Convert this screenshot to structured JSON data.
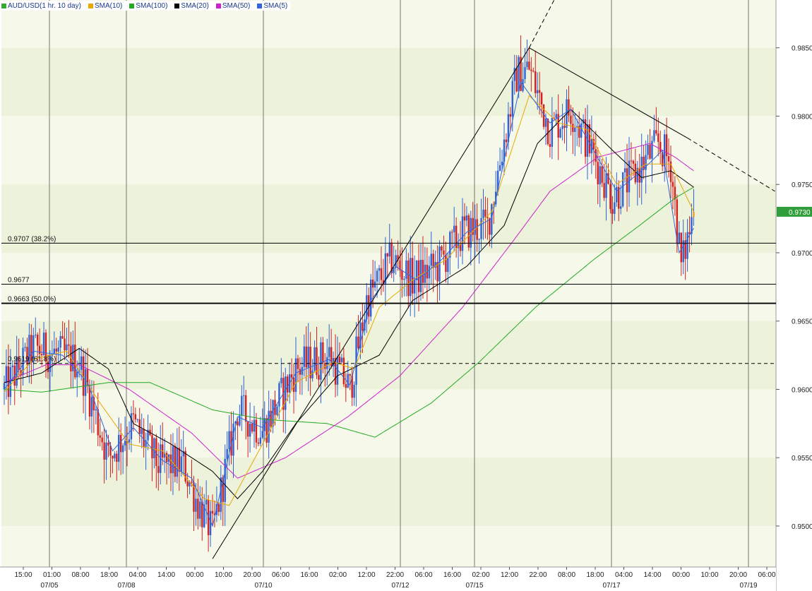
{
  "window": {
    "legend": [
      {
        "label": "AUD/USD(1 hr.  10 day)",
        "color": "#33aa33"
      },
      {
        "label": "SMA(10)",
        "color": "#e8a800"
      },
      {
        "label": "SMA(100)",
        "color": "#22aa22"
      },
      {
        "label": "SMA(20)",
        "color": "#000000"
      },
      {
        "label": "SMA(50)",
        "color": "#cc22cc"
      },
      {
        "label": "SMA(5)",
        "color": "#3366dd"
      }
    ],
    "last_price": "0.9730"
  },
  "chart_data": {
    "type": "candlestick",
    "symbol": "AUD/USD",
    "timeframe": "1 hr.  10 day",
    "ylim": [
      0.947,
      0.9885
    ],
    "y_ticks": [
      "0.9500",
      "0.9550",
      "0.9600",
      "0.9650",
      "0.9700",
      "0.9750",
      "0.9800",
      "0.9850"
    ],
    "x_ticks": [
      "15:00",
      "01:00",
      "08:00",
      "18:00",
      "04:00",
      "14:00",
      "00:00",
      "10:00",
      "20:00",
      "06:00",
      "16:00",
      "02:00",
      "12:00",
      "22:00",
      "06:00",
      "16:00",
      "02:00",
      "12:00",
      "22:00",
      "08:00",
      "18:00",
      "04:00",
      "14:00",
      "00:00",
      "10:00",
      "20:00",
      "06:00"
    ],
    "date_labels": [
      "07/05",
      "07/08",
      "07/10",
      "07/12",
      "07/15",
      "07/17",
      "07/19"
    ],
    "price_path_keypoints": [
      {
        "t": 0,
        "p": 0.96
      },
      {
        "t": 14,
        "p": 0.963
      },
      {
        "t": 28,
        "p": 0.9625
      },
      {
        "t": 36,
        "p": 0.962
      },
      {
        "t": 50,
        "p": 0.955
      },
      {
        "t": 62,
        "p": 0.9575
      },
      {
        "t": 74,
        "p": 0.9545
      },
      {
        "t": 86,
        "p": 0.9545
      },
      {
        "t": 92,
        "p": 0.952
      },
      {
        "t": 100,
        "p": 0.9495
      },
      {
        "t": 112,
        "p": 0.9585
      },
      {
        "t": 124,
        "p": 0.957
      },
      {
        "t": 140,
        "p": 0.9615
      },
      {
        "t": 156,
        "p": 0.9625
      },
      {
        "t": 166,
        "p": 0.96
      },
      {
        "t": 174,
        "p": 0.9665
      },
      {
        "t": 186,
        "p": 0.9695
      },
      {
        "t": 196,
        "p": 0.968
      },
      {
        "t": 208,
        "p": 0.969
      },
      {
        "t": 220,
        "p": 0.9715
      },
      {
        "t": 232,
        "p": 0.972
      },
      {
        "t": 246,
        "p": 0.983
      },
      {
        "t": 252,
        "p": 0.9835
      },
      {
        "t": 262,
        "p": 0.979
      },
      {
        "t": 272,
        "p": 0.9805
      },
      {
        "t": 282,
        "p": 0.9775
      },
      {
        "t": 292,
        "p": 0.974
      },
      {
        "t": 304,
        "p": 0.976
      },
      {
        "t": 314,
        "p": 0.978
      },
      {
        "t": 320,
        "p": 0.9765
      },
      {
        "t": 325,
        "p": 0.969
      },
      {
        "t": 331,
        "p": 0.973
      }
    ],
    "sma_keypoints": {
      "SMA(100)": [
        {
          "t": 0,
          "p": 0.96
        },
        {
          "t": 18,
          "p": 0.9598
        },
        {
          "t": 50,
          "p": 0.9605
        },
        {
          "t": 70,
          "p": 0.9605
        },
        {
          "t": 100,
          "p": 0.9585
        },
        {
          "t": 125,
          "p": 0.9578
        },
        {
          "t": 155,
          "p": 0.9575
        },
        {
          "t": 178,
          "p": 0.9565
        },
        {
          "t": 205,
          "p": 0.959
        },
        {
          "t": 228,
          "p": 0.962
        },
        {
          "t": 255,
          "p": 0.966
        },
        {
          "t": 283,
          "p": 0.9695
        },
        {
          "t": 305,
          "p": 0.972
        },
        {
          "t": 322,
          "p": 0.974
        },
        {
          "t": 331,
          "p": 0.9748
        }
      ],
      "SMA(50)": [
        {
          "t": 0,
          "p": 0.9605
        },
        {
          "t": 20,
          "p": 0.9618
        },
        {
          "t": 36,
          "p": 0.9618
        },
        {
          "t": 60,
          "p": 0.96
        },
        {
          "t": 90,
          "p": 0.9568
        },
        {
          "t": 112,
          "p": 0.9535
        },
        {
          "t": 135,
          "p": 0.955
        },
        {
          "t": 165,
          "p": 0.958
        },
        {
          "t": 190,
          "p": 0.961
        },
        {
          "t": 220,
          "p": 0.966
        },
        {
          "t": 245,
          "p": 0.971
        },
        {
          "t": 262,
          "p": 0.9745
        },
        {
          "t": 285,
          "p": 0.977
        },
        {
          "t": 310,
          "p": 0.978
        },
        {
          "t": 322,
          "p": 0.977
        },
        {
          "t": 331,
          "p": 0.976
        }
      ],
      "SMA(20)": [
        {
          "t": 0,
          "p": 0.9605
        },
        {
          "t": 18,
          "p": 0.9612
        },
        {
          "t": 36,
          "p": 0.963
        },
        {
          "t": 50,
          "p": 0.9615
        },
        {
          "t": 62,
          "p": 0.9575
        },
        {
          "t": 80,
          "p": 0.956
        },
        {
          "t": 100,
          "p": 0.954
        },
        {
          "t": 112,
          "p": 0.952
        },
        {
          "t": 124,
          "p": 0.954
        },
        {
          "t": 140,
          "p": 0.9575
        },
        {
          "t": 160,
          "p": 0.961
        },
        {
          "t": 180,
          "p": 0.9625
        },
        {
          "t": 196,
          "p": 0.9665
        },
        {
          "t": 222,
          "p": 0.969
        },
        {
          "t": 240,
          "p": 0.972
        },
        {
          "t": 256,
          "p": 0.978
        },
        {
          "t": 272,
          "p": 0.9805
        },
        {
          "t": 292,
          "p": 0.9775
        },
        {
          "t": 306,
          "p": 0.9755
        },
        {
          "t": 320,
          "p": 0.976
        },
        {
          "t": 331,
          "p": 0.9748
        }
      ],
      "SMA(10)": [
        {
          "t": 0,
          "p": 0.9598
        },
        {
          "t": 14,
          "p": 0.9622
        },
        {
          "t": 30,
          "p": 0.9628
        },
        {
          "t": 46,
          "p": 0.959
        },
        {
          "t": 60,
          "p": 0.956
        },
        {
          "t": 76,
          "p": 0.9555
        },
        {
          "t": 96,
          "p": 0.952
        },
        {
          "t": 108,
          "p": 0.9515
        },
        {
          "t": 124,
          "p": 0.956
        },
        {
          "t": 140,
          "p": 0.9605
        },
        {
          "t": 158,
          "p": 0.962
        },
        {
          "t": 168,
          "p": 0.9615
        },
        {
          "t": 180,
          "p": 0.966
        },
        {
          "t": 196,
          "p": 0.968
        },
        {
          "t": 212,
          "p": 0.9695
        },
        {
          "t": 234,
          "p": 0.973
        },
        {
          "t": 252,
          "p": 0.9815
        },
        {
          "t": 266,
          "p": 0.9795
        },
        {
          "t": 280,
          "p": 0.979
        },
        {
          "t": 294,
          "p": 0.975
        },
        {
          "t": 308,
          "p": 0.9765
        },
        {
          "t": 320,
          "p": 0.9765
        },
        {
          "t": 331,
          "p": 0.973
        }
      ],
      "SMA(5)": [
        {
          "t": 0,
          "p": 0.96
        },
        {
          "t": 14,
          "p": 0.9628
        },
        {
          "t": 28,
          "p": 0.9625
        },
        {
          "t": 40,
          "p": 0.9605
        },
        {
          "t": 52,
          "p": 0.9555
        },
        {
          "t": 62,
          "p": 0.9572
        },
        {
          "t": 76,
          "p": 0.9548
        },
        {
          "t": 90,
          "p": 0.9535
        },
        {
          "t": 100,
          "p": 0.95
        },
        {
          "t": 112,
          "p": 0.958
        },
        {
          "t": 124,
          "p": 0.9572
        },
        {
          "t": 140,
          "p": 0.9612
        },
        {
          "t": 156,
          "p": 0.9622
        },
        {
          "t": 166,
          "p": 0.9603
        },
        {
          "t": 176,
          "p": 0.9665
        },
        {
          "t": 188,
          "p": 0.969
        },
        {
          "t": 198,
          "p": 0.968
        },
        {
          "t": 210,
          "p": 0.9695
        },
        {
          "t": 222,
          "p": 0.9715
        },
        {
          "t": 234,
          "p": 0.9725
        },
        {
          "t": 248,
          "p": 0.9825
        },
        {
          "t": 262,
          "p": 0.9795
        },
        {
          "t": 272,
          "p": 0.9805
        },
        {
          "t": 284,
          "p": 0.9772
        },
        {
          "t": 294,
          "p": 0.9745
        },
        {
          "t": 306,
          "p": 0.976
        },
        {
          "t": 316,
          "p": 0.9775
        },
        {
          "t": 324,
          "p": 0.97
        },
        {
          "t": 331,
          "p": 0.9718
        }
      ]
    },
    "horizontal_levels": [
      {
        "label": "0.9707 (38.2%)",
        "value": 0.9707,
        "style": "solid"
      },
      {
        "label": "0.9677",
        "value": 0.9677,
        "style": "solid"
      },
      {
        "label": "0.9663 (50.0%)",
        "value": 0.9663,
        "style": "bold"
      },
      {
        "label": "0.9619 (61.8%)",
        "value": 0.9619,
        "style": "dashed"
      }
    ],
    "trendlines": [
      {
        "points": [
          {
            "t": 100,
            "p": 0.9476
          },
          {
            "t": 252,
            "p": 0.985
          }
        ],
        "extend": {
          "t": 264,
          "p": 0.9885
        }
      },
      {
        "points": [
          {
            "t": 252,
            "p": 0.985
          },
          {
            "t": 328,
            "p": 0.9784
          }
        ],
        "extend": {
          "t": 370,
          "p": 0.9745
        }
      }
    ],
    "grid": true,
    "legend_position": "top-left"
  }
}
